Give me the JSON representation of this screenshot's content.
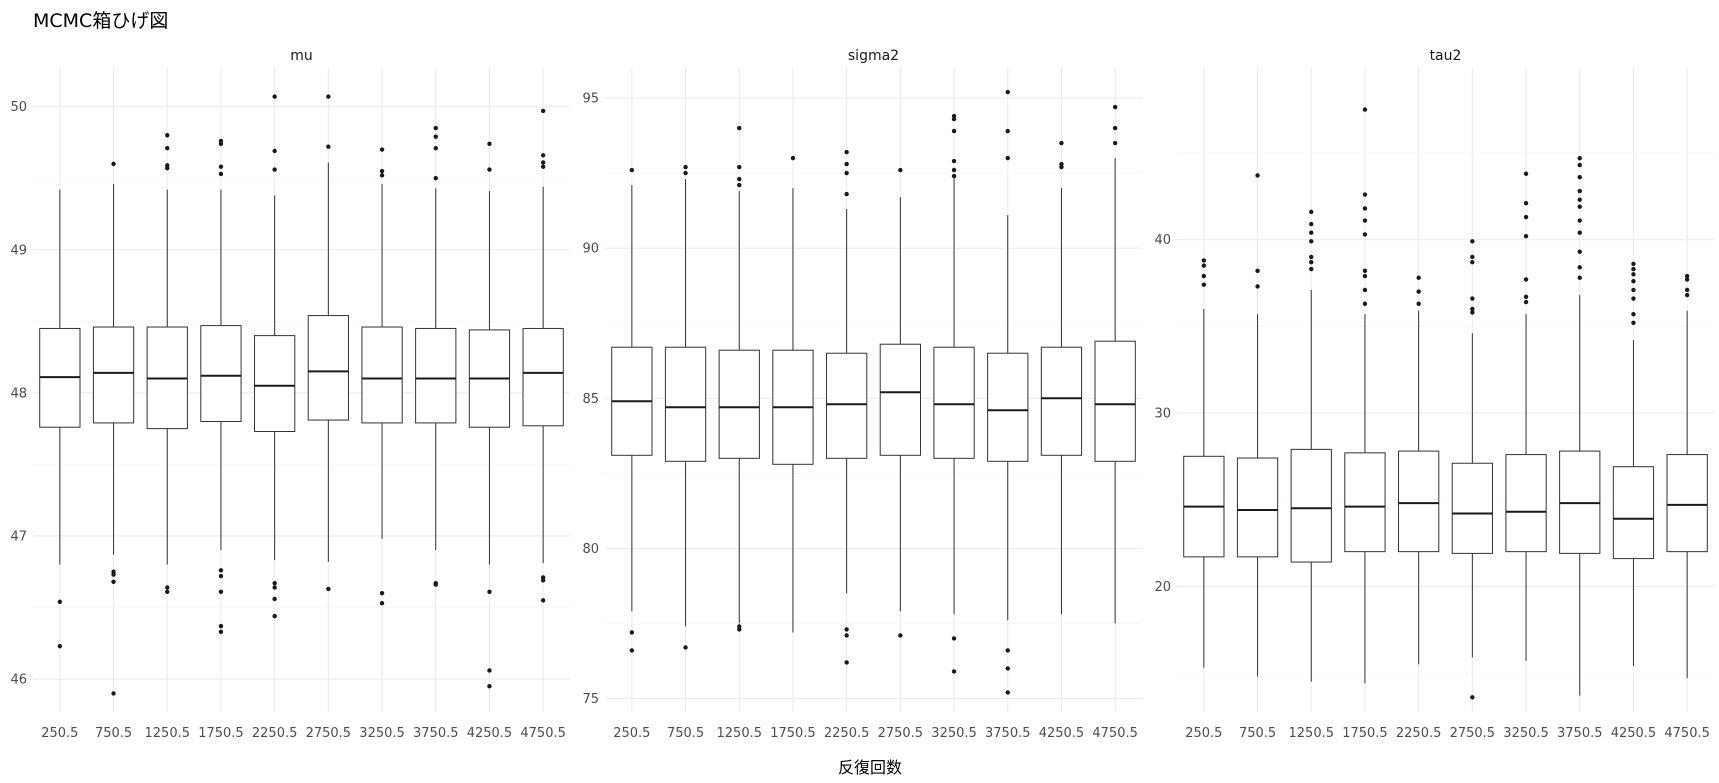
{
  "chart_data": {
    "type": "boxplot",
    "title": "MCMC箱ひげ図",
    "xlabel": "反復回数",
    "categories": [
      "250.5",
      "750.5",
      "1250.5",
      "1750.5",
      "2250.5",
      "2750.5",
      "3250.5",
      "3750.5",
      "4250.5",
      "4750.5"
    ],
    "grid": true,
    "panels": [
      {
        "name": "mu",
        "ylim": [
          45.77,
          50.27
        ],
        "yticks": [
          46,
          47,
          48,
          49,
          50
        ],
        "boxes": [
          {
            "q1": 47.76,
            "median": 48.11,
            "q3": 48.45,
            "lower": 46.8,
            "upper": 49.42,
            "outliers": [
              46.54,
              46.23
            ]
          },
          {
            "q1": 47.79,
            "median": 48.14,
            "q3": 48.46,
            "lower": 46.87,
            "upper": 49.46,
            "outliers": [
              46.75,
              46.73,
              46.68,
              45.9,
              49.6
            ]
          },
          {
            "q1": 47.75,
            "median": 48.1,
            "q3": 48.46,
            "lower": 46.8,
            "upper": 49.42,
            "outliers": [
              46.64,
              46.61,
              49.8,
              49.71,
              49.59,
              49.57
            ]
          },
          {
            "q1": 47.8,
            "median": 48.12,
            "q3": 48.47,
            "lower": 46.9,
            "upper": 49.42,
            "outliers": [
              46.76,
              46.72,
              46.61,
              46.37,
              46.33,
              49.76,
              49.74,
              49.58,
              49.53
            ]
          },
          {
            "q1": 47.73,
            "median": 48.05,
            "q3": 48.4,
            "lower": 46.83,
            "upper": 49.38,
            "outliers": [
              46.67,
              46.64,
              46.56,
              46.44,
              50.07,
              49.69,
              49.56
            ]
          },
          {
            "q1": 47.81,
            "median": 48.15,
            "q3": 48.54,
            "lower": 46.82,
            "upper": 49.61,
            "outliers": [
              46.63,
              50.07,
              49.72
            ]
          },
          {
            "q1": 47.79,
            "median": 48.1,
            "q3": 48.46,
            "lower": 46.98,
            "upper": 49.46,
            "outliers": [
              46.6,
              46.53,
              49.7,
              49.55,
              49.52
            ]
          },
          {
            "q1": 47.79,
            "median": 48.1,
            "q3": 48.45,
            "lower": 46.9,
            "upper": 49.43,
            "outliers": [
              46.67,
              46.66,
              49.85,
              49.79,
              49.71,
              49.5
            ]
          },
          {
            "q1": 47.76,
            "median": 48.1,
            "q3": 48.44,
            "lower": 46.8,
            "upper": 49.41,
            "outliers": [
              46.61,
              46.06,
              45.95,
              49.74,
              49.56
            ]
          },
          {
            "q1": 47.77,
            "median": 48.14,
            "q3": 48.45,
            "lower": 46.81,
            "upper": 49.44,
            "outliers": [
              46.71,
              46.69,
              46.55,
              49.97,
              49.66,
              49.61,
              49.58
            ]
          }
        ]
      },
      {
        "name": "sigma2",
        "ylim": [
          74.55,
          96.0
        ],
        "yticks": [
          75,
          80,
          85,
          90,
          95
        ],
        "boxes": [
          {
            "q1": 83.1,
            "median": 84.9,
            "q3": 86.7,
            "lower": 77.9,
            "upper": 92.1,
            "outliers": [
              77.2,
              76.6,
              92.6
            ]
          },
          {
            "q1": 82.9,
            "median": 84.7,
            "q3": 86.7,
            "lower": 77.4,
            "upper": 92.3,
            "outliers": [
              76.7,
              92.7,
              92.5
            ]
          },
          {
            "q1": 83.0,
            "median": 84.7,
            "q3": 86.6,
            "lower": 77.5,
            "upper": 91.9,
            "outliers": [
              77.4,
              77.3,
              94.0,
              92.7,
              92.3,
              92.1
            ]
          },
          {
            "q1": 82.8,
            "median": 84.7,
            "q3": 86.6,
            "lower": 77.2,
            "upper": 92.0,
            "outliers": [
              93.0
            ]
          },
          {
            "q1": 83.0,
            "median": 84.8,
            "q3": 86.5,
            "lower": 78.5,
            "upper": 91.3,
            "outliers": [
              77.3,
              77.1,
              76.2,
              93.2,
              92.8,
              92.5,
              91.8
            ]
          },
          {
            "q1": 83.1,
            "median": 85.2,
            "q3": 86.8,
            "lower": 77.9,
            "upper": 91.7,
            "outliers": [
              77.1,
              92.6
            ]
          },
          {
            "q1": 83.0,
            "median": 84.8,
            "q3": 86.7,
            "lower": 77.8,
            "upper": 92.4,
            "outliers": [
              77.0,
              75.9,
              94.4,
              94.3,
              93.9,
              92.9,
              92.6,
              92.4
            ]
          },
          {
            "q1": 82.9,
            "median": 84.6,
            "q3": 86.5,
            "lower": 77.6,
            "upper": 91.1,
            "outliers": [
              76.6,
              76.0,
              75.2,
              95.2,
              93.9,
              93.0
            ]
          },
          {
            "q1": 83.1,
            "median": 85.0,
            "q3": 86.7,
            "lower": 77.8,
            "upper": 92.0,
            "outliers": [
              93.5,
              92.8,
              92.7
            ]
          },
          {
            "q1": 82.9,
            "median": 84.8,
            "q3": 86.9,
            "lower": 77.5,
            "upper": 93.0,
            "outliers": [
              94.7,
              94.0,
              93.5
            ]
          }
        ]
      },
      {
        "name": "tau2",
        "ylim": [
          12.75,
          49.9
        ],
        "yticks": [
          20,
          30,
          40
        ],
        "boxes": [
          {
            "q1": 21.7,
            "median": 24.6,
            "q3": 27.5,
            "lower": 15.3,
            "upper": 36.0,
            "outliers": [
              38.8,
              38.5,
              37.9,
              37.4
            ]
          },
          {
            "q1": 21.7,
            "median": 24.4,
            "q3": 27.4,
            "lower": 14.8,
            "upper": 35.7,
            "outliers": [
              43.7,
              38.2,
              37.3
            ]
          },
          {
            "q1": 21.4,
            "median": 24.5,
            "q3": 27.9,
            "lower": 14.5,
            "upper": 37.1,
            "outliers": [
              41.6,
              40.9,
              40.4,
              39.9,
              39.0,
              38.7,
              38.3
            ]
          },
          {
            "q1": 22.0,
            "median": 24.6,
            "q3": 27.7,
            "lower": 14.4,
            "upper": 35.7,
            "outliers": [
              47.5,
              42.6,
              41.8,
              41.1,
              40.3,
              38.2,
              37.9,
              37.1,
              36.3
            ]
          },
          {
            "q1": 22.0,
            "median": 24.8,
            "q3": 27.8,
            "lower": 15.5,
            "upper": 35.9,
            "outliers": [
              37.8,
              37.0,
              36.3
            ]
          },
          {
            "q1": 21.9,
            "median": 24.2,
            "q3": 27.1,
            "lower": 15.9,
            "upper": 34.6,
            "outliers": [
              13.6,
              39.9,
              39.0,
              38.7,
              36.6,
              36.0,
              35.8
            ]
          },
          {
            "q1": 22.0,
            "median": 24.3,
            "q3": 27.6,
            "lower": 15.7,
            "upper": 35.7,
            "outliers": [
              43.8,
              42.1,
              41.3,
              40.2,
              37.7,
              36.7,
              36.4
            ]
          },
          {
            "q1": 21.9,
            "median": 24.8,
            "q3": 27.8,
            "lower": 13.7,
            "upper": 36.8,
            "outliers": [
              44.7,
              44.3,
              43.6,
              42.8,
              42.3,
              41.9,
              41.1,
              40.4,
              39.3,
              38.4,
              37.8
            ]
          },
          {
            "q1": 21.6,
            "median": 23.9,
            "q3": 26.9,
            "lower": 15.4,
            "upper": 34.2,
            "outliers": [
              38.6,
              38.3,
              38.0,
              37.6,
              37.1,
              36.6,
              35.7,
              35.2
            ]
          },
          {
            "q1": 22.0,
            "median": 24.7,
            "q3": 27.6,
            "lower": 14.7,
            "upper": 35.9,
            "outliers": [
              37.9,
              37.7,
              37.1,
              36.8
            ]
          }
        ]
      }
    ]
  }
}
